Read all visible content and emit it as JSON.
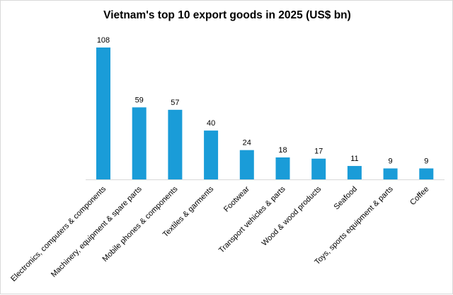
{
  "chart_data": {
    "type": "bar",
    "title": "Vietnam's top 10 export goods in 2025 (US$ bn)",
    "xlabel": "",
    "ylabel": "",
    "categories": [
      "Electronics, computers & components",
      "Machinery, equipment & spare parts",
      "Mobile phones & components",
      "Textiles & garments",
      "Footwear",
      "Transport vehicles & parts",
      "Wood & wood products",
      "Seafood",
      "Toys, sports equipment & parts",
      "Coffee"
    ],
    "values": [
      108,
      59,
      57,
      40,
      24,
      18,
      17,
      11,
      9,
      9
    ],
    "ylim": [
      0,
      108
    ],
    "grid": false,
    "legend": "none",
    "data_labels": true,
    "bar_color": "#1a9cd8"
  }
}
